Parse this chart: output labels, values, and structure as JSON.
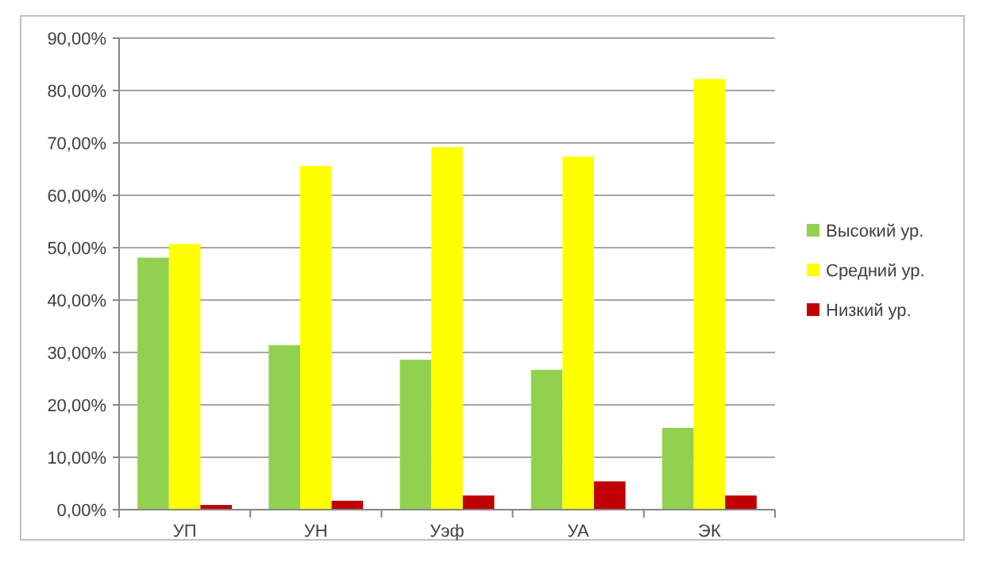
{
  "chart_data": {
    "type": "bar",
    "categories": [
      "УП",
      "УН",
      "Уэф",
      "УА",
      "ЭК"
    ],
    "series": [
      {
        "name": "Высокий ур.",
        "color": "#92d050",
        "values": [
          48.1,
          31.4,
          28.6,
          26.7,
          15.6
        ]
      },
      {
        "name": "Средний ур.",
        "color": "#ffff00",
        "values": [
          50.7,
          65.6,
          69.2,
          67.4,
          82.2
        ]
      },
      {
        "name": "Низкий ур.",
        "color": "#c00000",
        "values": [
          0.9,
          1.7,
          2.7,
          5.4,
          2.7
        ]
      }
    ],
    "ylim": [
      0,
      90
    ],
    "yticks": [
      {
        "value": 0,
        "label": "0,00%"
      },
      {
        "value": 10,
        "label": "10,00%"
      },
      {
        "value": 20,
        "label": "20,00%"
      },
      {
        "value": 30,
        "label": "30,00%"
      },
      {
        "value": 40,
        "label": "40,00%"
      },
      {
        "value": 50,
        "label": "50,00%"
      },
      {
        "value": 60,
        "label": "60,00%"
      },
      {
        "value": 70,
        "label": "70,00%"
      },
      {
        "value": 80,
        "label": "80,00%"
      },
      {
        "value": 90,
        "label": "90,00%"
      }
    ],
    "grid": "y",
    "legend": "right"
  }
}
